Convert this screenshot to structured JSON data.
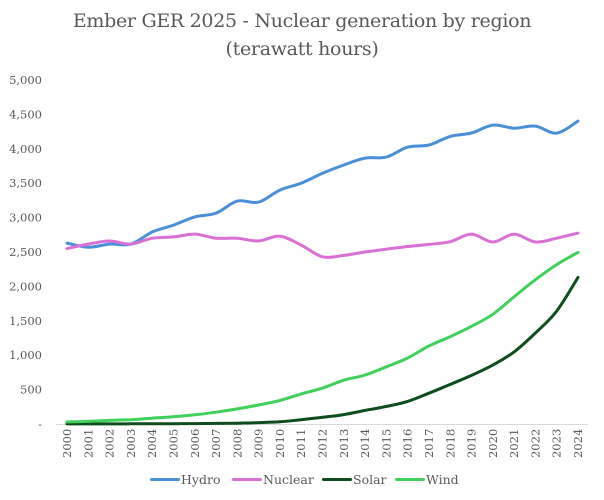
{
  "chart_data": {
    "type": "line",
    "title": "Ember GER 2025 - Nuclear generation by region",
    "subtitle": "(terawatt hours)",
    "xlabel": "",
    "ylabel": "",
    "ylim": [
      0,
      5000
    ],
    "y_ticks": [
      0,
      500,
      1000,
      1500,
      2000,
      2500,
      3000,
      3500,
      4000,
      4500,
      5000
    ],
    "y_tick_labels": [
      "-",
      "500",
      "1,000",
      "1,500",
      "2,000",
      "2,500",
      "3,000",
      "3,500",
      "4,000",
      "4,500",
      "5,000"
    ],
    "grid": false,
    "legend_position": "bottom",
    "x": [
      "2000",
      "2001",
      "2002",
      "2003",
      "2004",
      "2005",
      "2006",
      "2007",
      "2008",
      "2009",
      "2010",
      "2011",
      "2012",
      "2013",
      "2014",
      "2015",
      "2016",
      "2017",
      "2018",
      "2019",
      "2020",
      "2021",
      "2022",
      "2023",
      "2024"
    ],
    "series": [
      {
        "name": "Hydro",
        "color": "#4A90D9",
        "values": [
          2630,
          2570,
          2615,
          2615,
          2790,
          2890,
          3010,
          3065,
          3240,
          3225,
          3400,
          3500,
          3645,
          3765,
          3865,
          3880,
          4025,
          4055,
          4180,
          4230,
          4345,
          4300,
          4330,
          4228,
          4403
        ]
      },
      {
        "name": "Nuclear",
        "color": "#DA70D6",
        "values": [
          2550,
          2615,
          2660,
          2615,
          2700,
          2720,
          2760,
          2700,
          2700,
          2660,
          2730,
          2600,
          2430,
          2450,
          2500,
          2540,
          2580,
          2610,
          2650,
          2760,
          2645,
          2760,
          2645,
          2700,
          2775
        ]
      },
      {
        "name": "Solar",
        "color": "#0E4D1C",
        "values": [
          1,
          1,
          2,
          3,
          3,
          4,
          6,
          8,
          12,
          20,
          32,
          63,
          97,
          136,
          197,
          256,
          329,
          447,
          576,
          706,
          856,
          1048,
          1322,
          1641,
          2131
        ]
      },
      {
        "name": "Wind",
        "color": "#3FD159",
        "values": [
          31,
          38,
          52,
          63,
          85,
          104,
          133,
          171,
          220,
          276,
          342,
          437,
          522,
          636,
          712,
          831,
          960,
          1135,
          1270,
          1420,
          1595,
          1849,
          2097,
          2317,
          2494
        ]
      }
    ]
  }
}
